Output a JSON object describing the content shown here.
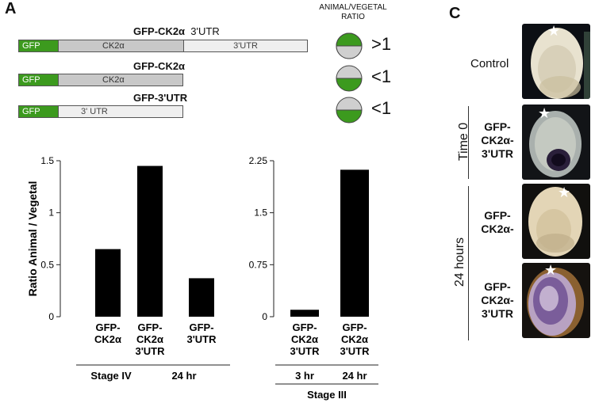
{
  "panel_a": {
    "letter": "A",
    "constructs": [
      {
        "name_bold": "GFP-CK2α",
        "name_extra": "3'UTR",
        "segments": [
          "GFP",
          "CK2α",
          "3'UTR"
        ]
      },
      {
        "name_bold": "GFP-CK2α",
        "name_extra": "",
        "segments": [
          "GFP",
          "CK2α"
        ]
      },
      {
        "name_bold": "GFP-3'UTR",
        "name_extra": "",
        "segments": [
          "GFP",
          "3' UTR"
        ]
      }
    ],
    "ratio_header": [
      "ANIMAL/VEGETAL",
      "RATIO"
    ],
    "ratio_values": [
      ">1",
      "<1",
      "<1"
    ],
    "colors": {
      "gfp": "#3c9a1e",
      "ck2": "#c8c8c8",
      "utr": "#efefef"
    }
  },
  "panel_c": {
    "letter": "C",
    "labels": {
      "control": "Control",
      "time0": "Time 0",
      "hours24": "24 hours",
      "row2": [
        "GFP-",
        "CK2α-",
        "3'UTR"
      ],
      "row3": [
        "GFP-",
        "CK2α-"
      ],
      "row4": [
        "GFP-",
        "CK2α-",
        "3'UTR"
      ]
    },
    "star": "★"
  },
  "chart_data": [
    {
      "type": "bar",
      "title": "",
      "ylabel": "Ratio Animal / Vegetal",
      "xlabel": "",
      "ylim": [
        0,
        1.5
      ],
      "yticks": [
        "0",
        "0.5",
        "1",
        "1.5"
      ],
      "yticks_values": [
        0,
        0.5,
        1,
        1.5
      ],
      "categories": [
        [
          "GFP-",
          "CK2α"
        ],
        [
          "GFP-",
          "CK2α",
          "3'UTR"
        ],
        [
          "GFP-",
          "3'UTR"
        ]
      ],
      "values": [
        0.65,
        1.45,
        0.37
      ],
      "group_labels": [
        "Stage IV",
        "24 hr"
      ],
      "grid": false
    },
    {
      "type": "bar",
      "title": "",
      "ylabel": "",
      "xlabel": "",
      "ylim": [
        0,
        2.25
      ],
      "yticks": [
        "0",
        "0.75",
        "1.5",
        "2.25"
      ],
      "yticks_values": [
        0,
        0.75,
        1.5,
        2.25
      ],
      "categories": [
        [
          "GFP-",
          "CK2α",
          "3'UTR"
        ],
        [
          "GFP-",
          "CK2α",
          "3'UTR"
        ]
      ],
      "values": [
        0.1,
        2.12
      ],
      "sub_labels": [
        "3 hr",
        "24 hr"
      ],
      "group_labels": [
        "Stage III"
      ],
      "grid": false
    }
  ]
}
